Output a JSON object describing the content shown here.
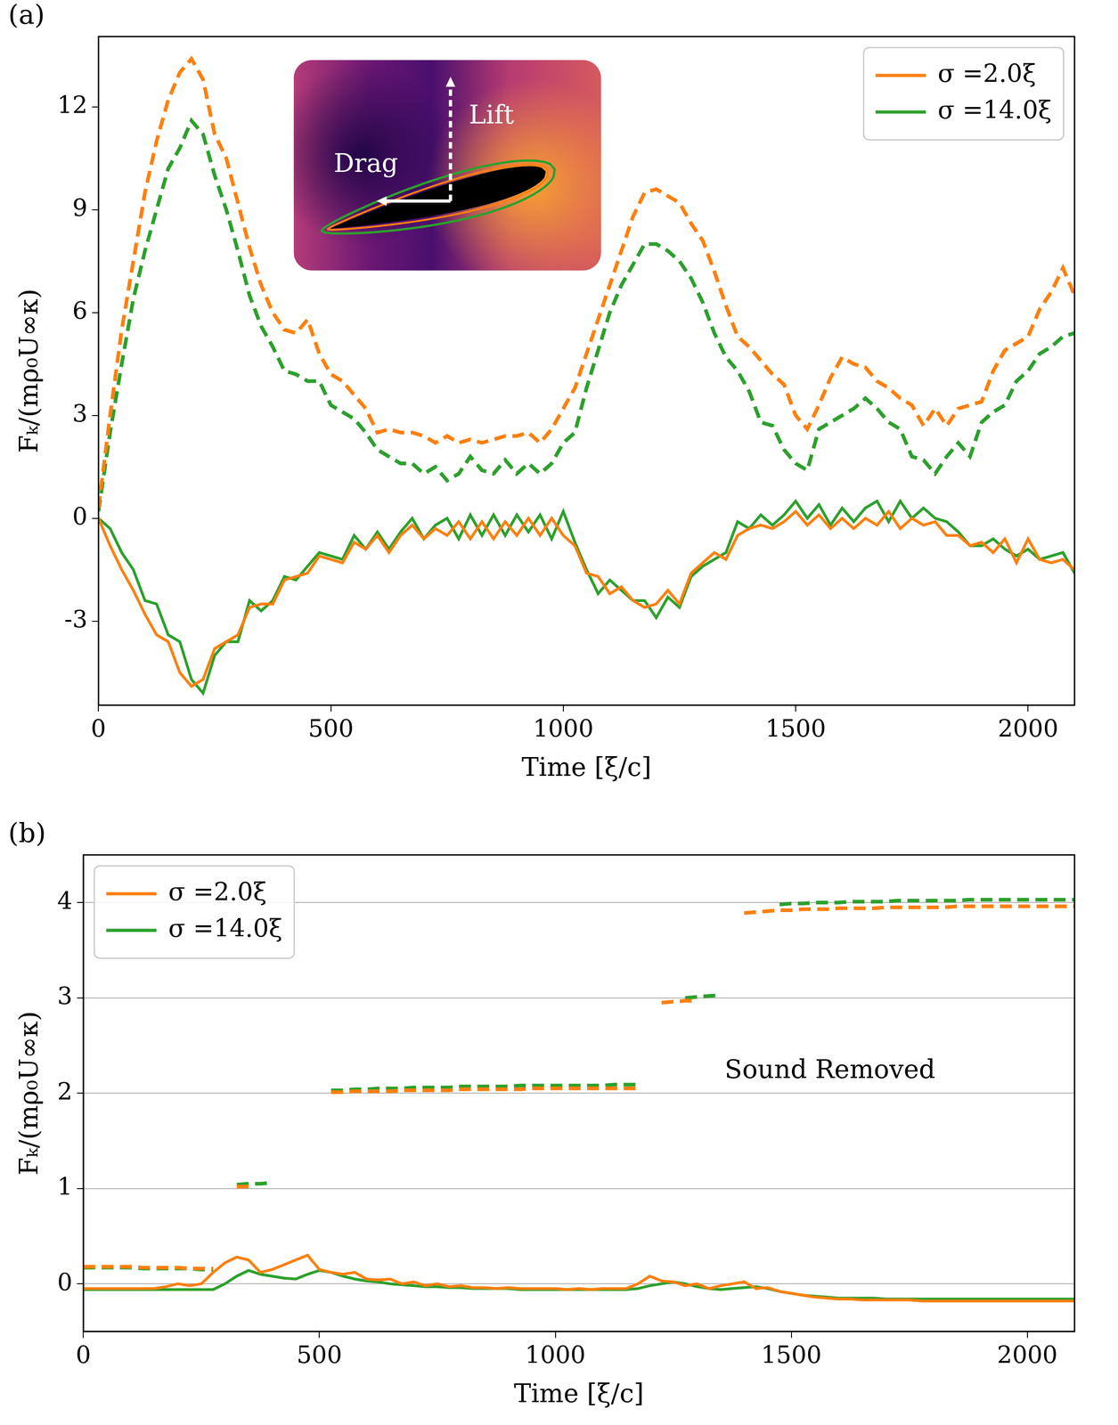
{
  "chart_data": [
    {
      "type": "line",
      "panel_label": "(a)",
      "x_label": "Time [ξ/c]",
      "y_label": "Fₖ/(mρ₀U∞κ)",
      "xlim": [
        0,
        2100
      ],
      "xticks": [
        0,
        500,
        1000,
        1500,
        2000
      ],
      "ylim": [
        -5.45,
        14.05
      ],
      "yticks": [
        -3,
        0,
        3,
        6,
        9,
        12
      ],
      "grid": false,
      "legend": "upper right",
      "inset_labels": [
        "Lift",
        "Drag"
      ],
      "x": [
        0,
        25,
        50,
        75,
        100,
        125,
        150,
        175,
        200,
        225,
        250,
        275,
        300,
        325,
        350,
        375,
        400,
        425,
        450,
        475,
        500,
        525,
        550,
        575,
        600,
        625,
        650,
        675,
        700,
        725,
        750,
        775,
        800,
        825,
        850,
        875,
        900,
        925,
        950,
        975,
        1000,
        1025,
        1050,
        1075,
        1100,
        1125,
        1150,
        1175,
        1200,
        1225,
        1250,
        1275,
        1300,
        1325,
        1350,
        1375,
        1400,
        1425,
        1450,
        1475,
        1500,
        1525,
        1550,
        1575,
        1600,
        1625,
        1650,
        1675,
        1700,
        1725,
        1750,
        1775,
        1800,
        1825,
        1850,
        1875,
        1900,
        1925,
        1950,
        1975,
        2000,
        2025,
        2050,
        2075,
        2100
      ],
      "series": [
        {
          "name": "σ =2.0ξ",
          "color": "#ff7f0e",
          "components": [
            {
              "line_style": "dashed",
              "values": [
                0.3,
                3.0,
                5.5,
                7.5,
                9.5,
                11.0,
                12.2,
                13.0,
                13.4,
                12.8,
                11.2,
                10.5,
                9.2,
                7.9,
                6.8,
                6.0,
                5.5,
                5.4,
                5.8,
                4.8,
                4.2,
                4.0,
                3.6,
                3.2,
                2.5,
                2.6,
                2.5,
                2.5,
                2.4,
                2.2,
                2.4,
                2.2,
                2.3,
                2.2,
                2.3,
                2.4,
                2.4,
                2.5,
                2.2,
                2.6,
                3.2,
                3.8,
                4.8,
                5.8,
                6.8,
                7.8,
                8.8,
                9.5,
                9.6,
                9.4,
                9.2,
                8.6,
                8.1,
                7.2,
                6.2,
                5.3,
                5.0,
                4.6,
                4.2,
                3.9,
                3.0,
                2.6,
                3.3,
                4.1,
                4.7,
                4.5,
                4.4,
                4.0,
                3.8,
                3.5,
                3.3,
                2.7,
                3.2,
                2.7,
                3.2,
                3.3,
                3.4,
                4.3,
                4.9,
                5.1,
                5.3,
                6.1,
                6.6,
                7.3,
                6.5
              ]
            },
            {
              "line_style": "solid",
              "values": [
                0,
                -0.8,
                -1.5,
                -2.1,
                -2.8,
                -3.4,
                -3.6,
                -4.5,
                -4.9,
                -4.7,
                -3.8,
                -3.6,
                -3.4,
                -2.6,
                -2.5,
                -2.5,
                -1.8,
                -1.7,
                -1.6,
                -1.1,
                -1.2,
                -1.3,
                -0.7,
                -0.9,
                -0.5,
                -1.0,
                -0.5,
                -0.2,
                -0.6,
                -0.3,
                -0.5,
                -0.1,
                -0.6,
                -0.1,
                -0.6,
                -0.1,
                -0.5,
                0.0,
                -0.5,
                0.0,
                -0.5,
                -0.8,
                -1.6,
                -1.7,
                -2.2,
                -2.0,
                -2.4,
                -2.6,
                -2.5,
                -2.1,
                -2.5,
                -1.6,
                -1.3,
                -1.0,
                -1.2,
                -0.5,
                -0.3,
                -0.2,
                -0.3,
                -0.1,
                0.2,
                -0.2,
                0.1,
                -0.3,
                0.0,
                -0.3,
                0.0,
                -0.2,
                0.2,
                -0.3,
                0.0,
                -0.2,
                -0.1,
                -0.5,
                -0.5,
                -0.8,
                -0.7,
                -1.0,
                -0.6,
                -1.3,
                -0.6,
                -1.2,
                -1.3,
                -1.2,
                -1.5
              ]
            }
          ]
        },
        {
          "name": "σ =14.0ξ",
          "color": "#2ca02c",
          "components": [
            {
              "line_style": "dashed",
              "values": [
                0.2,
                2.5,
                4.5,
                6.4,
                7.8,
                9.0,
                10.2,
                10.8,
                11.6,
                11.2,
                10.0,
                9.0,
                7.8,
                6.5,
                5.6,
                5.0,
                4.3,
                4.2,
                4.0,
                4.0,
                3.3,
                3.1,
                2.9,
                2.5,
                2.0,
                1.8,
                1.6,
                1.6,
                1.3,
                1.5,
                1.1,
                1.3,
                1.8,
                1.4,
                1.3,
                1.7,
                1.3,
                1.6,
                1.3,
                1.6,
                2.2,
                2.5,
                3.8,
                4.9,
                6.0,
                6.8,
                7.4,
                8.0,
                8.0,
                7.8,
                7.5,
                7.0,
                6.3,
                5.4,
                4.7,
                4.3,
                3.7,
                2.8,
                2.7,
                2.0,
                1.6,
                1.4,
                2.6,
                2.8,
                3.0,
                3.2,
                3.5,
                3.2,
                2.8,
                2.6,
                1.8,
                1.7,
                1.3,
                1.8,
                2.2,
                1.8,
                2.8,
                3.1,
                3.3,
                4.0,
                4.3,
                4.8,
                5.0,
                5.3,
                5.4
              ]
            },
            {
              "line_style": "solid",
              "values": [
                0,
                -0.3,
                -1.0,
                -1.5,
                -2.4,
                -2.5,
                -3.4,
                -3.6,
                -4.7,
                -5.1,
                -4.0,
                -3.6,
                -3.6,
                -2.4,
                -2.7,
                -2.4,
                -1.7,
                -1.8,
                -1.4,
                -1.0,
                -1.1,
                -1.2,
                -0.5,
                -0.9,
                -0.4,
                -0.9,
                -0.4,
                0.0,
                -0.6,
                -0.2,
                0.0,
                -0.6,
                0.1,
                -0.5,
                0.1,
                -0.5,
                0.1,
                -0.4,
                0.1,
                -0.6,
                0.2,
                -0.7,
                -1.5,
                -2.2,
                -1.8,
                -2.1,
                -2.4,
                -2.4,
                -2.9,
                -2.3,
                -2.6,
                -1.7,
                -1.4,
                -1.2,
                -1.0,
                -0.1,
                -0.3,
                0.1,
                -0.2,
                0.1,
                0.5,
                0.0,
                0.4,
                -0.2,
                0.3,
                -0.1,
                0.3,
                0.5,
                -0.1,
                0.5,
                0.0,
                0.3,
                0.0,
                -0.1,
                -0.4,
                -0.8,
                -0.8,
                -0.6,
                -0.9,
                -1.1,
                -0.9,
                -1.2,
                -1.1,
                -1.0,
                -1.6
              ]
            }
          ]
        }
      ]
    },
    {
      "type": "line",
      "panel_label": "(b)",
      "x_label": "Time [ξ/c]",
      "y_label": "Fₖ/(mρ₀U∞κ)",
      "xlim": [
        0,
        2100
      ],
      "xticks": [
        0,
        500,
        1000,
        1500,
        2000
      ],
      "ylim": [
        -0.5,
        4.5
      ],
      "yticks": [
        0,
        1,
        2,
        3,
        4
      ],
      "grid": "y",
      "legend": "upper left",
      "annotations": [
        "Sound Removed"
      ],
      "x": [
        0,
        25,
        50,
        75,
        100,
        125,
        150,
        175,
        200,
        225,
        250,
        275,
        300,
        325,
        350,
        375,
        400,
        425,
        450,
        475,
        500,
        525,
        550,
        575,
        600,
        625,
        650,
        675,
        700,
        725,
        750,
        775,
        800,
        825,
        850,
        875,
        900,
        925,
        950,
        975,
        1000,
        1025,
        1050,
        1075,
        1100,
        1125,
        1150,
        1175,
        1200,
        1225,
        1250,
        1275,
        1300,
        1325,
        1350,
        1375,
        1400,
        1425,
        1450,
        1475,
        1500,
        1525,
        1550,
        1575,
        1600,
        1625,
        1650,
        1675,
        1700,
        1725,
        1750,
        1775,
        1800,
        1825,
        1850,
        1875,
        1900,
        1925,
        1950,
        1975,
        2000,
        2025,
        2050,
        2075,
        2100
      ],
      "series": [
        {
          "name": "σ =2.0ξ",
          "color": "#ff7f0e",
          "components": [
            {
              "line_style": "dashed",
              "values": [
                0.18,
                0.18,
                0.18,
                0.18,
                0.18,
                0.17,
                0.17,
                0.17,
                0.17,
                0.16,
                0.16,
                0.16,
                null,
                1.02,
                1.02,
                null,
                null,
                null,
                null,
                null,
                null,
                2.01,
                2.01,
                2.02,
                2.02,
                2.02,
                2.02,
                2.03,
                2.03,
                2.03,
                2.03,
                2.03,
                2.04,
                2.04,
                2.04,
                2.04,
                2.04,
                2.04,
                2.05,
                2.05,
                2.05,
                2.05,
                2.05,
                2.05,
                2.05,
                2.05,
                2.05,
                2.05,
                null,
                2.95,
                2.96,
                2.97,
                2.97,
                null,
                null,
                null,
                3.89,
                3.9,
                3.91,
                3.92,
                3.92,
                3.93,
                3.93,
                3.93,
                3.94,
                3.94,
                3.94,
                3.94,
                3.95,
                3.95,
                3.95,
                3.95,
                3.95,
                3.95,
                3.96,
                3.96,
                3.96,
                3.96,
                3.96,
                3.96,
                3.96,
                3.96,
                3.96,
                3.96,
                3.96
              ]
            },
            {
              "line_style": "solid",
              "values": [
                -0.05,
                -0.05,
                -0.05,
                -0.05,
                -0.05,
                -0.05,
                -0.05,
                -0.03,
                0.0,
                -0.02,
                0.0,
                0.12,
                0.22,
                0.28,
                0.25,
                0.12,
                0.15,
                0.2,
                0.25,
                0.3,
                0.15,
                0.12,
                0.1,
                0.12,
                0.05,
                0.04,
                0.05,
                0.0,
                0.02,
                -0.02,
                0.0,
                -0.03,
                -0.02,
                -0.04,
                -0.04,
                -0.05,
                -0.04,
                -0.05,
                -0.05,
                -0.05,
                -0.05,
                -0.06,
                -0.05,
                -0.06,
                -0.05,
                -0.05,
                -0.05,
                0.0,
                0.08,
                0.03,
                0.02,
                -0.02,
                0.0,
                -0.05,
                -0.02,
                0.0,
                0.02,
                -0.05,
                -0.04,
                -0.08,
                -0.1,
                -0.12,
                -0.14,
                -0.15,
                -0.16,
                -0.16,
                -0.17,
                -0.17,
                -0.17,
                -0.17,
                -0.17,
                -0.18,
                -0.18,
                -0.18,
                -0.18,
                -0.18,
                -0.18,
                -0.18,
                -0.18,
                -0.18,
                -0.18,
                -0.18,
                -0.18,
                -0.18,
                -0.18
              ]
            }
          ]
        },
        {
          "name": "σ =14.0ξ",
          "color": "#2ca02c",
          "components": [
            {
              "line_style": "dashed",
              "values": [
                0.17,
                0.17,
                0.17,
                0.17,
                0.17,
                0.16,
                0.16,
                0.16,
                0.16,
                0.16,
                0.15,
                0.15,
                null,
                1.04,
                1.05,
                1.05,
                1.06,
                null,
                null,
                null,
                null,
                2.03,
                2.03,
                2.04,
                2.04,
                2.05,
                2.05,
                2.05,
                2.06,
                2.06,
                2.06,
                2.06,
                2.07,
                2.07,
                2.07,
                2.07,
                2.07,
                2.08,
                2.08,
                2.08,
                2.08,
                2.08,
                2.08,
                2.08,
                2.08,
                2.09,
                2.09,
                2.09,
                null,
                null,
                null,
                3.0,
                3.01,
                3.02,
                3.03,
                null,
                null,
                null,
                null,
                3.98,
                3.99,
                3.99,
                4.0,
                4.0,
                4.0,
                4.01,
                4.01,
                4.01,
                4.01,
                4.02,
                4.02,
                4.02,
                4.02,
                4.02,
                4.02,
                4.03,
                4.03,
                4.03,
                4.03,
                4.03,
                4.03,
                4.03,
                4.03,
                4.03,
                4.03
              ]
            },
            {
              "line_style": "solid",
              "values": [
                -0.06,
                -0.06,
                -0.06,
                -0.06,
                -0.06,
                -0.06,
                -0.06,
                -0.06,
                -0.06,
                -0.06,
                -0.06,
                -0.06,
                0.0,
                0.08,
                0.14,
                0.1,
                0.08,
                0.06,
                0.05,
                0.1,
                0.14,
                0.12,
                0.08,
                0.05,
                0.03,
                0.02,
                0.0,
                -0.01,
                -0.02,
                -0.03,
                -0.03,
                -0.04,
                -0.04,
                -0.05,
                -0.05,
                -0.05,
                -0.05,
                -0.06,
                -0.06,
                -0.06,
                -0.06,
                -0.06,
                -0.06,
                -0.06,
                -0.06,
                -0.06,
                -0.06,
                -0.05,
                -0.02,
                0.0,
                0.02,
                0.0,
                -0.03,
                -0.05,
                -0.06,
                -0.05,
                -0.04,
                -0.03,
                -0.05,
                -0.08,
                -0.1,
                -0.12,
                -0.13,
                -0.14,
                -0.15,
                -0.15,
                -0.15,
                -0.15,
                -0.16,
                -0.16,
                -0.16,
                -0.16,
                -0.16,
                -0.16,
                -0.16,
                -0.16,
                -0.16,
                -0.16,
                -0.16,
                -0.16,
                -0.16,
                -0.16,
                -0.16,
                -0.16,
                -0.16
              ]
            }
          ]
        }
      ]
    }
  ]
}
